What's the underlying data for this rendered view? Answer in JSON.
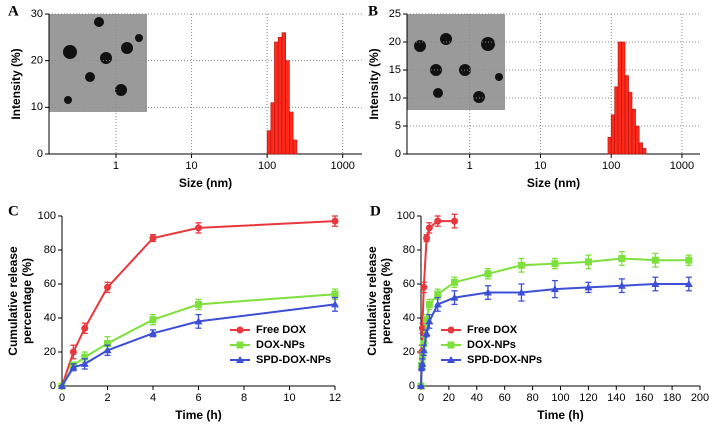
{
  "chart_data": [
    {
      "type": "histogram",
      "label": "A",
      "xlabel": "Size (nm)",
      "ylabel": "Intensity (%)",
      "log_x": true,
      "grid": true,
      "color": "#ff2a1a",
      "bins": [
        100,
        112,
        125,
        140,
        157,
        176,
        197,
        221,
        248
      ],
      "values": [
        5,
        11,
        24,
        25,
        26,
        20,
        9,
        3
      ],
      "xlim": [
        0.13,
        1800
      ],
      "xticks": [
        1,
        10,
        100,
        1000
      ],
      "ylim": [
        0,
        30
      ],
      "yticks": [
        0,
        10,
        20,
        30
      ]
    },
    {
      "type": "histogram",
      "label": "B",
      "xlabel": "Size (nm)",
      "ylabel": "Intensity (%)",
      "log_x": true,
      "grid": true,
      "color": "#ff2a1a",
      "bins": [
        90,
        100,
        112,
        125,
        140,
        157,
        176,
        197,
        221,
        248,
        278,
        311
      ],
      "values": [
        3,
        7,
        12,
        20,
        20,
        14,
        11,
        8,
        5,
        2,
        1
      ],
      "xlim": [
        0.13,
        1800
      ],
      "xticks": [
        1,
        10,
        100,
        1000
      ],
      "ylim": [
        0,
        25
      ],
      "yticks": [
        0,
        5,
        10,
        15,
        20,
        25
      ]
    },
    {
      "type": "line",
      "label": "C",
      "xlabel": "Time (h)",
      "ylabel": [
        "Cumulative release",
        "percentage (%)"
      ],
      "grid": false,
      "legend": "lower right",
      "xlim": [
        0,
        12
      ],
      "xticks": [
        0,
        2,
        4,
        6,
        8,
        10,
        12
      ],
      "ylim": [
        0,
        100
      ],
      "yticks": [
        0,
        20,
        40,
        60,
        80,
        100
      ],
      "series": [
        {
          "name": "Free DOX",
          "color": "#e8383d",
          "marker": "circle",
          "x": [
            0,
            0.5,
            1,
            2,
            4,
            6,
            12
          ],
          "values": [
            0,
            20,
            34,
            58,
            87,
            93,
            97
          ],
          "errors": [
            0,
            4,
            3,
            3,
            2,
            3,
            3
          ]
        },
        {
          "name": "DOX-NPs",
          "color": "#7de03c",
          "marker": "square",
          "x": [
            0,
            0.5,
            1,
            2,
            4,
            6,
            12
          ],
          "values": [
            0,
            12,
            17,
            25,
            39,
            48,
            54
          ],
          "errors": [
            0,
            2,
            3,
            4,
            3,
            3,
            3
          ]
        },
        {
          "name": "SPD-DOX-NPs",
          "color": "#3d4fd6",
          "marker": "triangle",
          "x": [
            0,
            0.5,
            1,
            2,
            4,
            6,
            12
          ],
          "values": [
            0,
            11,
            13,
            21,
            31,
            38,
            48
          ],
          "errors": [
            0,
            2,
            3,
            3,
            2,
            4,
            4
          ]
        }
      ]
    },
    {
      "type": "line",
      "label": "D",
      "xlabel": "Time (h)",
      "ylabel": [
        "Cumulative release",
        "percentage (%)"
      ],
      "grid": false,
      "legend": "lower left",
      "xlim": [
        0,
        200
      ],
      "xticks": [
        0,
        20,
        40,
        60,
        80,
        100,
        120,
        140,
        160,
        180,
        200
      ],
      "ylim": [
        0,
        100
      ],
      "yticks": [
        0,
        20,
        40,
        60,
        80,
        100
      ],
      "series": [
        {
          "name": "Free DOX",
          "color": "#e8383d",
          "marker": "circle",
          "x": [
            0,
            0.5,
            1,
            2,
            4,
            6,
            12,
            24
          ],
          "values": [
            0,
            20,
            34,
            58,
            87,
            93,
            97,
            97
          ],
          "errors": [
            0,
            4,
            3,
            3,
            2,
            3,
            3,
            4
          ]
        },
        {
          "name": "DOX-NPs",
          "color": "#7de03c",
          "marker": "square",
          "x": [
            0,
            0.5,
            1,
            2,
            4,
            6,
            12,
            24,
            48,
            72,
            96,
            120,
            144,
            168,
            192
          ],
          "values": [
            0,
            12,
            17,
            25,
            39,
            48,
            54,
            61,
            66,
            71,
            72,
            73,
            75,
            74,
            74
          ],
          "errors": [
            0,
            2,
            3,
            4,
            3,
            3,
            3,
            3,
            3,
            4,
            3,
            4,
            4,
            4,
            3
          ]
        },
        {
          "name": "SPD-DOX-NPs",
          "color": "#3d4fd6",
          "marker": "triangle",
          "x": [
            0,
            0.5,
            1,
            2,
            4,
            6,
            12,
            24,
            48,
            72,
            96,
            120,
            144,
            168,
            192
          ],
          "values": [
            0,
            11,
            13,
            21,
            31,
            38,
            48,
            52,
            55,
            55,
            57,
            58,
            59,
            60,
            60
          ],
          "errors": [
            0,
            2,
            3,
            3,
            2,
            4,
            4,
            4,
            4,
            5,
            5,
            3,
            4,
            4,
            4
          ]
        }
      ]
    }
  ]
}
